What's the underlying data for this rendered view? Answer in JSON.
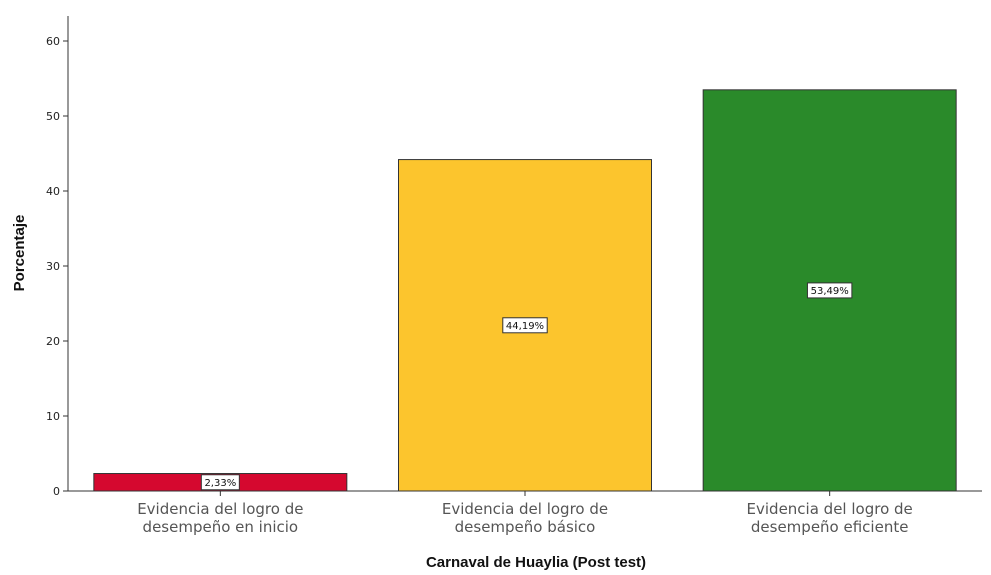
{
  "chart_data": {
    "type": "bar",
    "categories": [
      [
        "Evidencia del logro de",
        "desempeño en inicio"
      ],
      [
        "Evidencia del logro de",
        "desempeño básico"
      ],
      [
        "Evidencia del logro de",
        "desempeño eficiente"
      ]
    ],
    "values": [
      2.33,
      44.19,
      53.49
    ],
    "data_labels": [
      "2,33%",
      "44,19%",
      "53,49%"
    ],
    "colors": [
      "#d5082f",
      "#fcc52d",
      "#2a8a2a"
    ],
    "title": "",
    "xlabel": "Carnaval de Huaylia (Post test)",
    "ylabel": "Porcentaje",
    "ylim": [
      0,
      60
    ],
    "yticks": [
      0,
      10,
      20,
      30,
      40,
      50,
      60
    ],
    "grid": false,
    "legend": "none"
  }
}
